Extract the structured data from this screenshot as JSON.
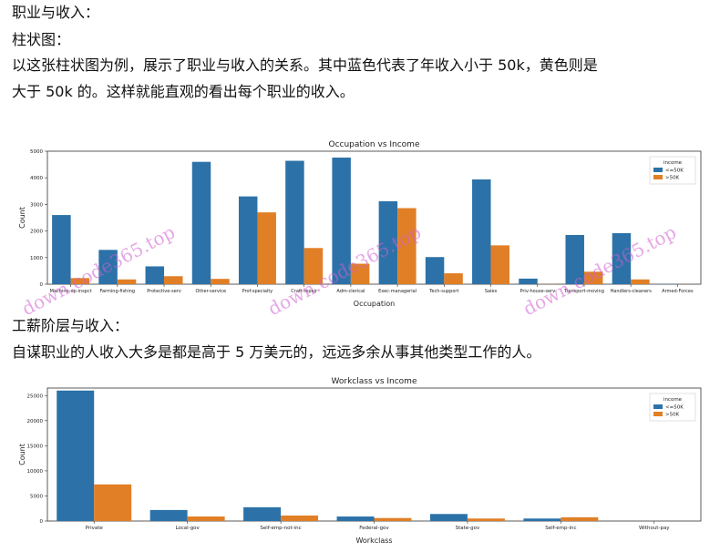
{
  "text": {
    "heading1": "职业与收入：",
    "heading2": "柱状图：",
    "para1_line1": "以这张柱状图为例，展示了职业与收入的关系。其中蓝色代表了年收入小于 50k，黄色则是",
    "para1_line2": "大于 50k 的。这样就能直观的看出每个职业的收入。",
    "heading3": "工薪阶层与收入：",
    "para2": "自谋职业的人收入大多是都是高于 5 万美元的，远远多余从事其他类型工作的人。"
  },
  "watermark": "down.code365.top",
  "colors": {
    "low": "#2c72a8",
    "high": "#e17f26"
  },
  "chart_data": [
    {
      "type": "bar",
      "title": "Occupation vs Income",
      "xlabel": "Occupation",
      "ylabel": "Count",
      "ylim": [
        0,
        5000
      ],
      "yticks": [
        0,
        1000,
        2000,
        3000,
        4000,
        5000
      ],
      "legend_title": "income",
      "legend_position": "top-right",
      "categories": [
        "Machine-op-inspct",
        "Farming-fishing",
        "Protective-serv",
        "Other-service",
        "Prof-specialty",
        "Craft-repair",
        "Adm-clerical",
        "Exec-managerial",
        "Tech-support",
        "Sales",
        "Priv-house-serv",
        "Transport-moving",
        "Handlers-cleaners",
        "Armed-Forces"
      ],
      "series": [
        {
          "name": "<=50K",
          "values": [
            2600,
            1290,
            670,
            4600,
            3300,
            4640,
            4760,
            3120,
            1020,
            3940,
            210,
            1850,
            1920,
            10
          ]
        },
        {
          "name": ">50K",
          "values": [
            230,
            180,
            300,
            200,
            2700,
            1360,
            770,
            2860,
            410,
            1460,
            5,
            470,
            180,
            2
          ]
        }
      ]
    },
    {
      "type": "bar",
      "title": "Workclass vs Income",
      "xlabel": "Workclass",
      "ylabel": "Count",
      "ylim": [
        0,
        26500
      ],
      "yticks": [
        0,
        5000,
        10000,
        15000,
        20000,
        25000
      ],
      "legend_title": "income",
      "legend_position": "top-right",
      "categories": [
        "Private",
        "Local-gov",
        "Self-emp-not-inc",
        "Federal-gov",
        "State-gov",
        "Self-emp-inc",
        "Without-pay"
      ],
      "series": [
        {
          "name": "<=50K",
          "values": [
            26000,
            2200,
            2750,
            900,
            1400,
            500,
            10
          ]
        },
        {
          "name": ">50K",
          "values": [
            7300,
            900,
            1100,
            600,
            500,
            750,
            0
          ]
        }
      ]
    }
  ]
}
